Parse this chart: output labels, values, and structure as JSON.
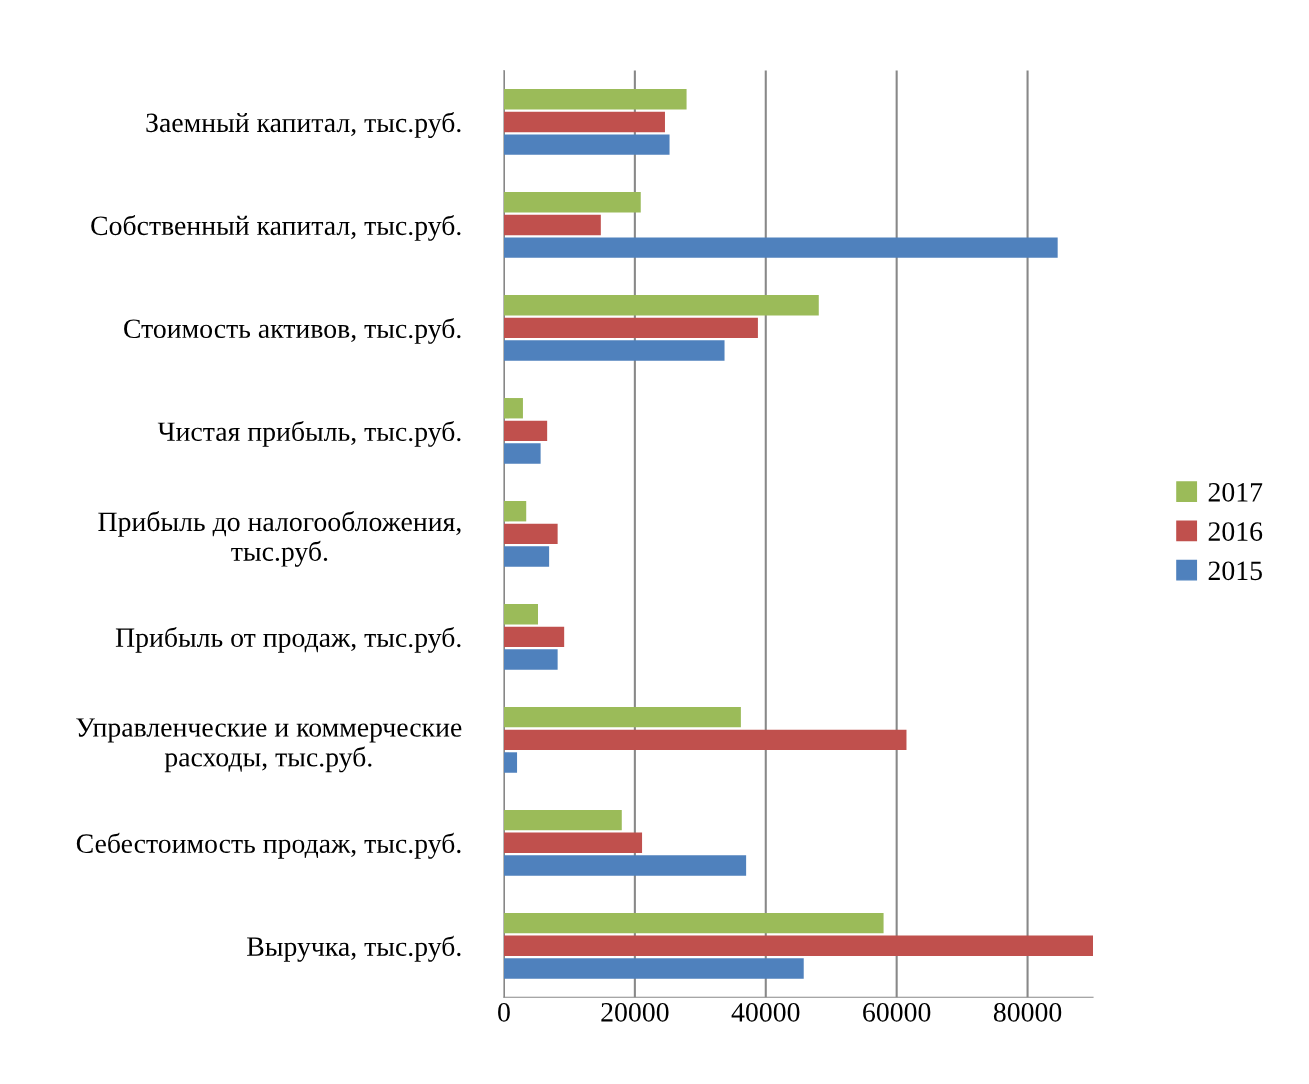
{
  "chart_data": {
    "type": "bar",
    "orientation": "horizontal",
    "categories": [
      "Заемный капитал, тыс.руб.",
      "Собственный капитал, тыс.руб.",
      "Стоимость активов, тыс.руб.",
      "Чистая прибыль, тыс.руб.",
      "Прибыль до налогообложения,\nтыс.руб.",
      "Прибыль от продаж, тыс.руб.",
      "Управленческие и коммерческие\nрасходы, тыс.руб.",
      "Себестоимость продаж, тыс.руб.",
      "Выручка, тыс.руб."
    ],
    "series": [
      {
        "name": "2015",
        "color": "#4f81bd",
        "values": [
          25300,
          84600,
          33700,
          5600,
          6900,
          8200,
          2000,
          37000,
          45800
        ]
      },
      {
        "name": "2016",
        "color": "#c0504d",
        "values": [
          24600,
          14800,
          38800,
          6600,
          8200,
          9200,
          61500,
          21100,
          90000
        ]
      },
      {
        "name": "2017",
        "color": "#9bbb59",
        "values": [
          27900,
          20900,
          48100,
          2900,
          3400,
          5200,
          36200,
          18000,
          58000
        ]
      }
    ],
    "xlim": [
      0,
      90000
    ],
    "xticks": [
      0,
      20000,
      40000,
      60000,
      80000
    ],
    "grid": "x",
    "legend": "right"
  }
}
